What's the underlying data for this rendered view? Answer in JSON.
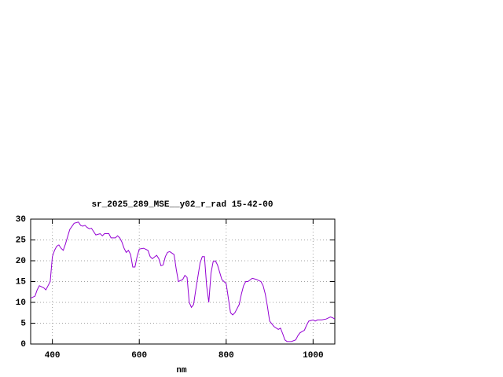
{
  "chart_data": {
    "type": "line",
    "title": "sr_2025_289_MSE__y02_r_rad 15-42-00",
    "x_label": "nm",
    "x": [
      350,
      360,
      365,
      370,
      380,
      385,
      390,
      395,
      400,
      405,
      410,
      415,
      420,
      425,
      430,
      440,
      450,
      460,
      465,
      470,
      475,
      480,
      485,
      490,
      495,
      500,
      510,
      515,
      520,
      530,
      535,
      545,
      550,
      555,
      560,
      565,
      570,
      575,
      580,
      585,
      590,
      595,
      600,
      610,
      620,
      625,
      630,
      640,
      645,
      650,
      655,
      660,
      665,
      670,
      680,
      685,
      690,
      700,
      705,
      710,
      715,
      720,
      725,
      730,
      740,
      745,
      750,
      755,
      760,
      765,
      770,
      775,
      780,
      790,
      800,
      805,
      810,
      815,
      820,
      830,
      835,
      840,
      845,
      850,
      860,
      870,
      880,
      885,
      890,
      895,
      900,
      910,
      920,
      925,
      930,
      935,
      940,
      950,
      960,
      965,
      970,
      975,
      980,
      985,
      990,
      1000,
      1005,
      1010,
      1020,
      1030,
      1040,
      1045,
      1050
    ],
    "series": [
      {
        "color": "#9400d3",
        "values": [
          11,
          11.5,
          13,
          14,
          13.5,
          13,
          14,
          15,
          21,
          22.5,
          23.5,
          23.8,
          23,
          22.5,
          24,
          27.5,
          29,
          29.3,
          28.5,
          28.3,
          28.5,
          28,
          27.7,
          27.8,
          27,
          26.2,
          26.5,
          26,
          26.5,
          26.5,
          25.5,
          25.5,
          26,
          25.5,
          24.5,
          23,
          22,
          22.5,
          21.5,
          18.5,
          18.5,
          21,
          22.8,
          23,
          22.5,
          21,
          20.5,
          21.3,
          20.5,
          18.8,
          19,
          21,
          22,
          22.2,
          21.5,
          18,
          15,
          15.5,
          16.5,
          16,
          10,
          8.8,
          9.5,
          13,
          19.5,
          21,
          21,
          14,
          10,
          17,
          19.8,
          20,
          19,
          15.5,
          14.5,
          11,
          7.5,
          7,
          7.5,
          9.5,
          12,
          14,
          15,
          15,
          15.8,
          15.5,
          15,
          14,
          12,
          9,
          5.5,
          4.2,
          3.5,
          3.8,
          2.5,
          1,
          0.6,
          0.6,
          1,
          2,
          2.7,
          3,
          3.3,
          4.5,
          5.5,
          5.8,
          5.5,
          5.8,
          5.8,
          6,
          6.5,
          6.3,
          6
        ]
      }
    ],
    "xlim": [
      350,
      1050
    ],
    "ylim": [
      0,
      30
    ],
    "xticks": [
      400,
      600,
      800,
      1000
    ],
    "yticks": [
      0,
      5,
      10,
      15,
      20,
      25,
      30
    ],
    "grid": true
  }
}
